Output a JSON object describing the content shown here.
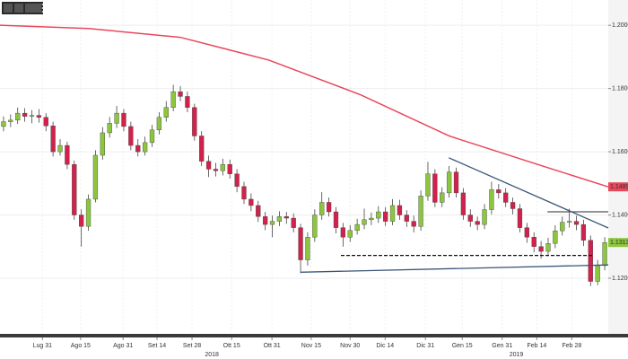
{
  "chart_data": {
    "type": "candlestick",
    "x": [
      1,
      3,
      5,
      7,
      9,
      11,
      13,
      15,
      17,
      19,
      21,
      23,
      25,
      27,
      29,
      31,
      33,
      35,
      37,
      39,
      41,
      43,
      45,
      47,
      49,
      51,
      53,
      55,
      57,
      59,
      61,
      63,
      65,
      67,
      69,
      71,
      73,
      75,
      77,
      79,
      81,
      83,
      85,
      87,
      89,
      91,
      93,
      95,
      97,
      99,
      101,
      103,
      105,
      107,
      109,
      111,
      113,
      115,
      117,
      119,
      121,
      123,
      125,
      127,
      129,
      131,
      133,
      135,
      137,
      139,
      141,
      143,
      145,
      147,
      149,
      151,
      153,
      155,
      157,
      159,
      161,
      163,
      165,
      167,
      169,
      171
    ],
    "open": [
      1.168,
      1.1695,
      1.17,
      1.1722,
      1.1712,
      1.1715,
      1.1709,
      1.1682,
      1.16,
      1.162,
      1.156,
      1.14,
      1.1364,
      1.145,
      1.1589,
      1.166,
      1.169,
      1.1722,
      1.168,
      1.162,
      1.16,
      1.1629,
      1.1669,
      1.1709,
      1.174,
      1.179,
      1.1775,
      1.174,
      1.165,
      1.157,
      1.1545,
      1.154,
      1.156,
      1.153,
      1.149,
      1.145,
      1.143,
      1.1395,
      1.137,
      1.138,
      1.1395,
      1.139,
      1.136,
      1.1258,
      1.133,
      1.14,
      1.144,
      1.141,
      1.136,
      1.133,
      1.1351,
      1.137,
      1.1385,
      1.139,
      1.141,
      1.138,
      1.143,
      1.14,
      1.138,
      1.1364,
      1.146,
      1.153,
      1.144,
      1.147,
      1.1536,
      1.147,
      1.14,
      1.138,
      1.137,
      1.1417,
      1.148,
      1.147,
      1.144,
      1.142,
      1.136,
      1.133,
      1.13,
      1.1285,
      1.131,
      1.135,
      1.1377,
      1.138,
      1.137,
      1.132,
      1.119,
      1.124
    ],
    "high": [
      1.1712,
      1.1718,
      1.174,
      1.1738,
      1.1732,
      1.1735,
      1.1722,
      1.1695,
      1.164,
      1.1632,
      1.1572,
      1.1418,
      1.1465,
      1.1605,
      1.1678,
      1.171,
      1.1745,
      1.1735,
      1.1695,
      1.164,
      1.1648,
      1.1685,
      1.1725,
      1.176,
      1.1812,
      1.1808,
      1.179,
      1.1752,
      1.1665,
      1.1588,
      1.1565,
      1.1578,
      1.1575,
      1.1545,
      1.1505,
      1.1468,
      1.1445,
      1.141,
      1.1398,
      1.1412,
      1.141,
      1.1405,
      1.1372,
      1.1345,
      1.1418,
      1.1472,
      1.1455,
      1.1425,
      1.1375,
      1.1368,
      1.1388,
      1.142,
      1.1408,
      1.1428,
      1.1425,
      1.145,
      1.1448,
      1.1415,
      1.1398,
      1.1478,
      1.1568,
      1.1545,
      1.1488,
      1.1555,
      1.155,
      1.1485,
      1.1418,
      1.1395,
      1.1435,
      1.1505,
      1.1498,
      1.1485,
      1.1455,
      1.1435,
      1.1375,
      1.1345,
      1.1318,
      1.1328,
      1.1368,
      1.1395,
      1.142,
      1.1398,
      1.1385,
      1.1335,
      1.1258,
      1.133
    ],
    "low": [
      1.1665,
      1.1678,
      1.1688,
      1.1695,
      1.169,
      1.1692,
      1.1665,
      1.1585,
      1.1588,
      1.1545,
      1.1385,
      1.13,
      1.135,
      1.144,
      1.1575,
      1.1645,
      1.1675,
      1.1665,
      1.1605,
      1.1585,
      1.1588,
      1.1615,
      1.1655,
      1.1695,
      1.1728,
      1.176,
      1.1725,
      1.1635,
      1.1555,
      1.152,
      1.1522,
      1.1525,
      1.1515,
      1.1472,
      1.1435,
      1.1412,
      1.1378,
      1.1352,
      1.133,
      1.1365,
      1.1372,
      1.1345,
      1.1216,
      1.124,
      1.1315,
      1.1385,
      1.1395,
      1.1342,
      1.13,
      1.1315,
      1.1338,
      1.1355,
      1.1368,
      1.1375,
      1.1365,
      1.1368,
      1.1385,
      1.1362,
      1.1345,
      1.135,
      1.1445,
      1.1425,
      1.1425,
      1.1455,
      1.1455,
      1.1385,
      1.1362,
      1.1352,
      1.1355,
      1.1402,
      1.1452,
      1.1425,
      1.1402,
      1.1345,
      1.1312,
      1.1282,
      1.1262,
      1.127,
      1.1295,
      1.1335,
      1.136,
      1.1352,
      1.1302,
      1.1175,
      1.1178,
      1.1225
    ],
    "close": [
      1.1695,
      1.17,
      1.1722,
      1.1712,
      1.1715,
      1.1709,
      1.1682,
      1.16,
      1.162,
      1.156,
      1.14,
      1.1364,
      1.145,
      1.1589,
      1.166,
      1.169,
      1.1722,
      1.168,
      1.162,
      1.16,
      1.1629,
      1.1669,
      1.1709,
      1.174,
      1.179,
      1.1775,
      1.174,
      1.165,
      1.157,
      1.1545,
      1.154,
      1.156,
      1.153,
      1.149,
      1.145,
      1.143,
      1.1395,
      1.137,
      1.138,
      1.1395,
      1.139,
      1.136,
      1.1258,
      1.133,
      1.14,
      1.144,
      1.141,
      1.136,
      1.133,
      1.1351,
      1.137,
      1.1385,
      1.139,
      1.141,
      1.138,
      1.143,
      1.14,
      1.138,
      1.1364,
      1.146,
      1.153,
      1.144,
      1.147,
      1.1536,
      1.147,
      1.14,
      1.138,
      1.137,
      1.1417,
      1.148,
      1.147,
      1.144,
      1.142,
      1.136,
      1.133,
      1.13,
      1.1285,
      1.131,
      1.135,
      1.1377,
      1.138,
      1.137,
      1.132,
      1.119,
      1.124,
      1.1313
    ],
    "up_color": "#8cc63e",
    "down_color": "#d2214b",
    "overlays": [
      {
        "x": [
          0,
          25,
          51,
          76,
          102,
          127,
          152,
          172
        ],
        "values": [
          1.2,
          1.199,
          1.1962,
          1.189,
          1.178,
          1.165,
          1.156,
          1.1489
        ],
        "color": "#e8475c"
      }
    ],
    "trend_lines": [
      {
        "x": [
          126.9,
          172
        ],
        "y": [
          1.1581,
          1.1359
        ],
        "color": "#3b5778",
        "dashed": false
      },
      {
        "x": [
          85,
          172
        ],
        "y": [
          1.1219,
          1.1242
        ],
        "color": "#3b5778",
        "dashed": false
      },
      {
        "x": [
          154.8,
          172
        ],
        "y": [
          1.141,
          1.141
        ],
        "color": "#555555",
        "dashed": false
      },
      {
        "x": [
          96.4,
          167.5
        ],
        "y": [
          1.1272,
          1.1272
        ],
        "color": "#111111",
        "dashed": true
      }
    ],
    "price_labels": [
      {
        "value": 1.1489,
        "color": "#e8475c"
      },
      {
        "value": 1.1313,
        "color": "#8cc63e"
      }
    ],
    "xlim": [
      0,
      172
    ],
    "ylim": [
      1.1024,
      1.208
    ],
    "yticks": [
      {
        "value": 1.2,
        "label": "1.2000"
      },
      {
        "value": 1.18,
        "label": "1.1800"
      },
      {
        "value": 1.16,
        "label": "1.1600"
      },
      {
        "value": 1.14,
        "label": "1.1400"
      },
      {
        "value": 1.12,
        "label": "1.1200"
      }
    ],
    "xticks": [
      {
        "value": 12,
        "label": "Lug 31"
      },
      {
        "value": 22.8,
        "label": "Ago 15"
      },
      {
        "value": 34.8,
        "label": "Ago 31"
      },
      {
        "value": 44.4,
        "label": "Set 14"
      },
      {
        "value": 54.3,
        "label": "Set 28"
      },
      {
        "value": 65.5,
        "label": "Ott 15"
      },
      {
        "value": 76.9,
        "label": "Ott 31"
      },
      {
        "value": 88,
        "label": "Nov 15"
      },
      {
        "value": 99,
        "label": "Nov 30"
      },
      {
        "value": 108.9,
        "label": "Dic 14"
      },
      {
        "value": 120.3,
        "label": "Dic 31"
      },
      {
        "value": 130.7,
        "label": "Gen 15"
      },
      {
        "value": 142,
        "label": "Gen 31"
      },
      {
        "value": 151.8,
        "label": "Feb 14"
      },
      {
        "value": 161.7,
        "label": "Feb 28"
      }
    ],
    "year_ticks": [
      {
        "value": 59.9,
        "label": "2018"
      },
      {
        "value": 146,
        "label": "2019"
      }
    ],
    "grid": true
  }
}
